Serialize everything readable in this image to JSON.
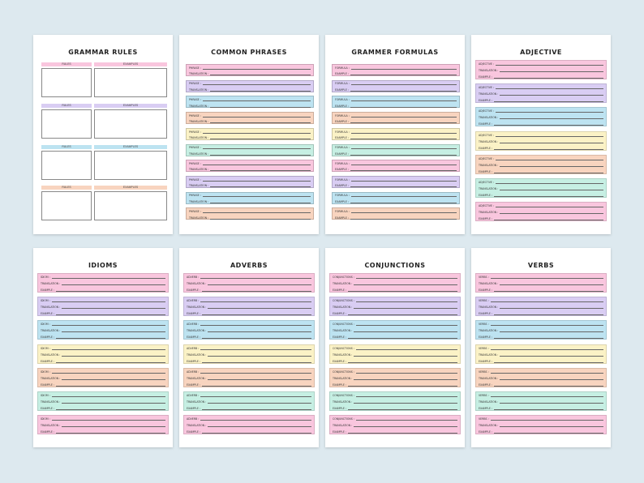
{
  "colors": {
    "pink": "#f9c6de",
    "purple": "#d9cdf3",
    "blue": "#bde3f1",
    "peach": "#f8d4bf",
    "yellow": "#fbf2c6",
    "mint": "#c6efe3",
    "background": "#dde9ef"
  },
  "grammar_rules": {
    "title": "GRAMMAR RULES",
    "rules_label": "RULES",
    "examples_label": "EXAMPLES",
    "blocks": [
      "pink",
      "purple",
      "blue",
      "peach"
    ]
  },
  "common_phrases": {
    "title": "COMMON PHRASES",
    "row1": "PHRASE :",
    "row2": "TRANSLATION :",
    "sections": [
      "pink",
      "purple",
      "blue",
      "peach",
      "yellow",
      "mint",
      "pink",
      "purple",
      "blue",
      "peach"
    ]
  },
  "grammer_formulas": {
    "title": "GRAMMER FORMULAS",
    "row1": "FORMULA :",
    "row2": "EXAMPLE :",
    "sections": [
      "pink",
      "purple",
      "blue",
      "peach",
      "yellow",
      "mint",
      "pink",
      "purple",
      "blue",
      "peach"
    ]
  },
  "adjective": {
    "title": "ADJECTIVE",
    "row1": "ADJECTIVE :",
    "row2": "TRANSLATION :",
    "row3": "EXAMPLE :",
    "sections": [
      "pink",
      "purple",
      "blue",
      "yellow",
      "peach",
      "mint",
      "pink"
    ]
  },
  "idioms": {
    "title": "IDIOMS",
    "row1": "IDIOM :",
    "row2": "TRANSLATION :",
    "row3": "EXAMPLE :",
    "sections": [
      "pink",
      "purple",
      "blue",
      "yellow",
      "peach",
      "mint",
      "pink"
    ]
  },
  "adverbs": {
    "title": "ADVERBS",
    "row1": "ADVERB :",
    "row2": "TRANSLATION :",
    "row3": "EXAMPLE :",
    "sections": [
      "pink",
      "purple",
      "blue",
      "yellow",
      "peach",
      "mint",
      "pink"
    ]
  },
  "conjunctions": {
    "title": "CONJUNCTIONS",
    "row1": "CONJUNCTIONS :",
    "row2": "TRANSLATION :",
    "row3": "EXAMPLE :",
    "sections": [
      "pink",
      "purple",
      "blue",
      "yellow",
      "peach",
      "mint",
      "pink"
    ]
  },
  "verbs": {
    "title": "VERBS",
    "row1": "VERBS :",
    "row2": "TRANSLATION :",
    "row3": "EXAMPLE :",
    "sections": [
      "pink",
      "purple",
      "blue",
      "yellow",
      "peach",
      "mint",
      "pink"
    ]
  }
}
